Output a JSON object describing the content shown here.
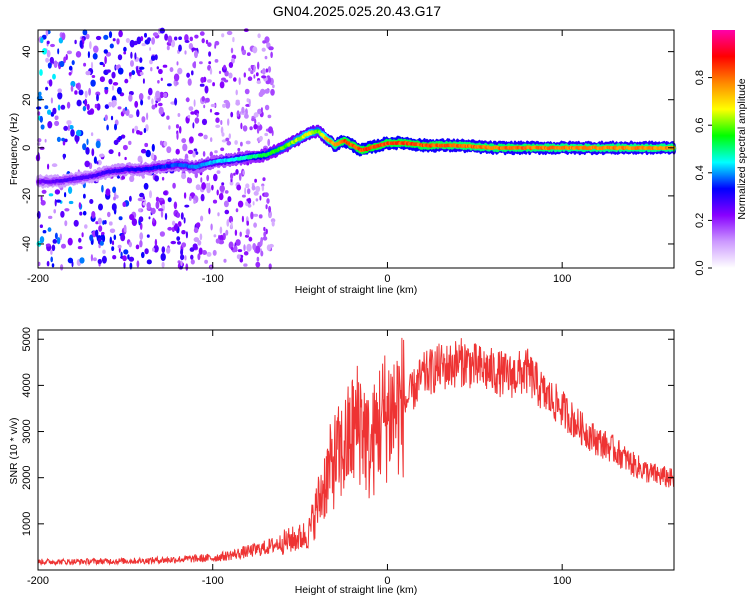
{
  "title": "GN04.2025.025.20.43.G17",
  "chart_data": [
    {
      "type": "heatmap",
      "xlabel": "Height of straight line (km)",
      "ylabel": "Frequency (Hz)",
      "xlim": [
        -200,
        164
      ],
      "ylim": [
        -50,
        49
      ],
      "xticks": [
        -200,
        -100,
        0,
        100
      ],
      "yticks": [
        -40,
        -20,
        0,
        20,
        40
      ],
      "colorbar": {
        "label": "Normalized spectral amplitude",
        "range": [
          0,
          1
        ],
        "ticks": [
          "0.0",
          "0.2",
          "0.4",
          "0.6",
          "0.8"
        ],
        "colors": [
          "#ffffff",
          "#cc99ff",
          "#8800ff",
          "#0000ff",
          "#00ffff",
          "#00ff00",
          "#ffff00",
          "#ff8800",
          "#ff0000",
          "#ff00aa"
        ]
      },
      "ridge": {
        "x": [
          -200,
          -190,
          -180,
          -170,
          -160,
          -150,
          -140,
          -130,
          -120,
          -110,
          -100,
          -90,
          -80,
          -70,
          -60,
          -50,
          -45,
          -40,
          -35,
          -30,
          -25,
          -20,
          -15,
          -10,
          -5,
          0,
          10,
          20,
          40,
          60,
          80,
          100,
          120,
          140,
          164
        ],
        "frequency": [
          -14,
          -14,
          -13,
          -12,
          -10,
          -9,
          -9,
          -8,
          -7,
          -8,
          -6,
          -5,
          -4,
          -3,
          0,
          4,
          6,
          7,
          4,
          1,
          3,
          1,
          -1,
          0,
          1,
          2,
          2,
          1,
          1,
          0,
          0,
          0,
          0,
          0,
          0
        ],
        "amplitude": [
          0.25,
          0.27,
          0.28,
          0.28,
          0.3,
          0.32,
          0.33,
          0.35,
          0.38,
          0.4,
          0.43,
          0.45,
          0.5,
          0.55,
          0.6,
          0.65,
          0.7,
          0.6,
          0.75,
          0.8,
          0.85,
          0.85,
          0.85,
          0.88,
          0.85,
          0.85,
          0.85,
          0.85,
          0.82,
          0.82,
          0.82,
          0.8,
          0.8,
          0.8,
          0.8
        ]
      },
      "noise_region_x": [
        -200,
        -65
      ]
    },
    {
      "type": "line",
      "xlabel": "Height of straight line (km)",
      "ylabel": "SNR (10 * v/v)",
      "xlim": [
        -200,
        164
      ],
      "ylim": [
        0,
        5200
      ],
      "xticks": [
        -200,
        -100,
        0,
        100
      ],
      "yticks": [
        1000,
        2000,
        3000,
        4000,
        5000
      ],
      "color": "#ee3333",
      "series": [
        {
          "name": "SNR",
          "x": [
            -200,
            -180,
            -160,
            -140,
            -120,
            -100,
            -90,
            -80,
            -70,
            -60,
            -50,
            -45,
            -40,
            -35,
            -30,
            -25,
            -20,
            -15,
            -10,
            -5,
            0,
            5,
            10,
            15,
            20,
            25,
            30,
            35,
            40,
            45,
            50,
            60,
            70,
            80,
            90,
            100,
            110,
            120,
            130,
            140,
            150,
            160,
            164
          ],
          "y": [
            180,
            180,
            190,
            200,
            230,
            260,
            320,
            400,
            480,
            600,
            700,
            800,
            1400,
            2000,
            2400,
            2600,
            3000,
            3300,
            2500,
            3200,
            3400,
            3500,
            3600,
            3900,
            4200,
            4300,
            4400,
            4400,
            4500,
            4500,
            4400,
            4300,
            4200,
            4300,
            3800,
            3500,
            3100,
            2800,
            2600,
            2300,
            2100,
            2000,
            1950
          ]
        }
      ]
    }
  ]
}
